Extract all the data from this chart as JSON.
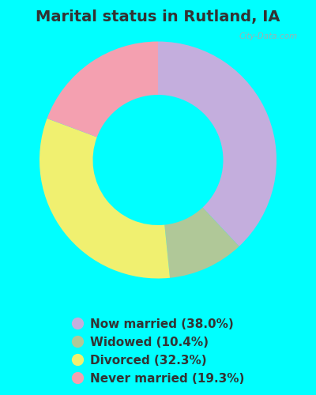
{
  "title": "Marital status in Rutland, IA",
  "slices": [
    38.0,
    10.4,
    32.3,
    19.3
  ],
  "labels": [
    "Now married (38.0%)",
    "Widowed (10.4%)",
    "Divorced (32.3%)",
    "Never married (19.3%)"
  ],
  "colors": [
    "#c4aedd",
    "#b0c898",
    "#f0f070",
    "#f4a0b0"
  ],
  "background_color": "#00ffff",
  "chart_bg_top": "#e8f5ee",
  "chart_bg_color": "#d8eedf",
  "title_fontsize": 14,
  "legend_fontsize": 11,
  "watermark": "City-Data.com",
  "donut_width": 0.45,
  "start_angle": 90
}
